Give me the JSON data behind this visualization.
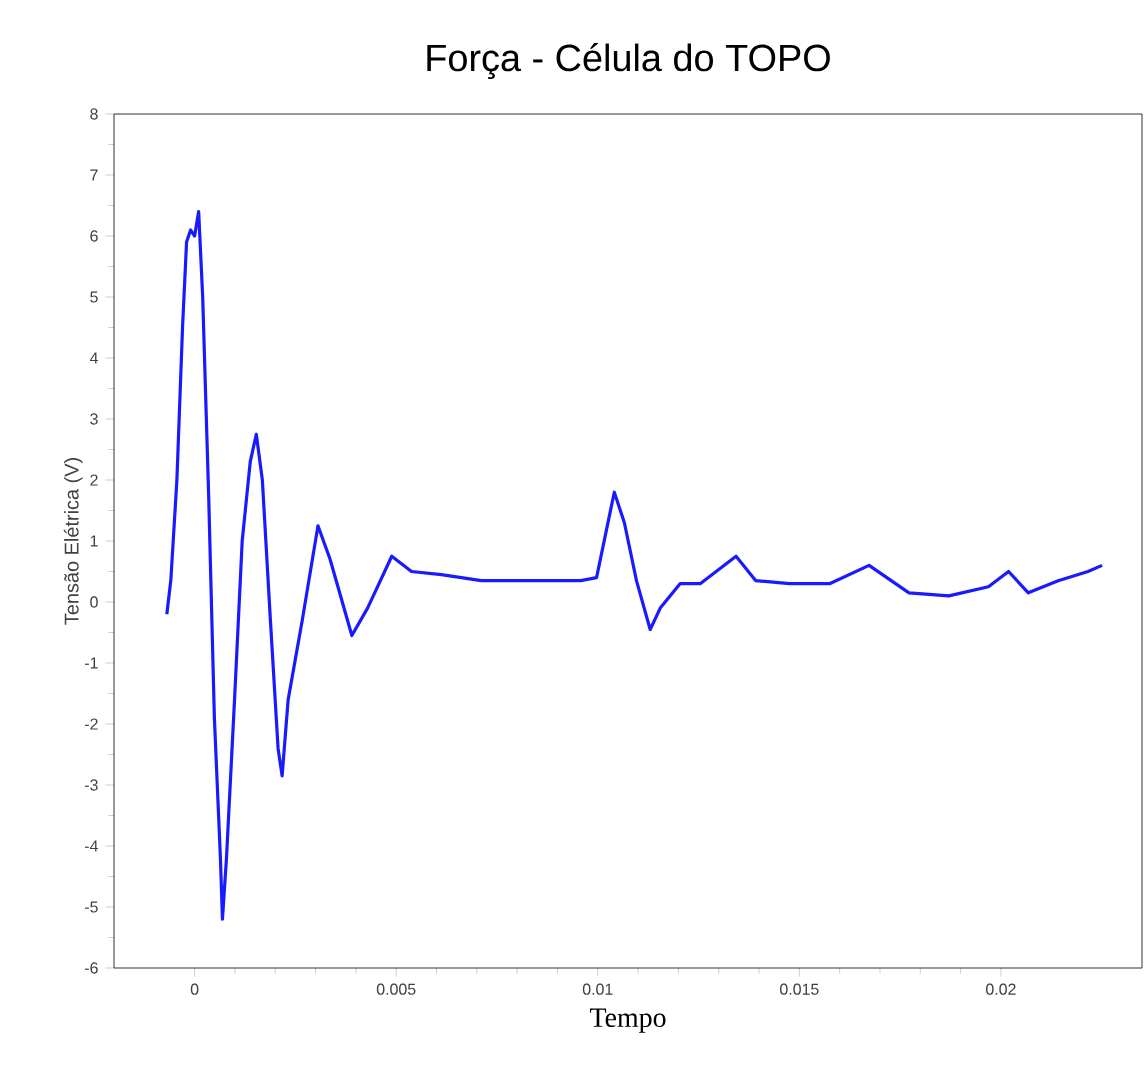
{
  "chart_data": {
    "type": "line",
    "title": "Força - Célula do TOPO",
    "xlabel": "Tempo",
    "ylabel": "Tensão Elétrica (V)",
    "xlim": [
      -0.002,
      0.0235
    ],
    "ylim": [
      -6,
      8
    ],
    "xticks": [
      0,
      0.005,
      0.01,
      0.015,
      0.02
    ],
    "yticks": [
      -6,
      -5,
      -4,
      -3,
      -2,
      -1,
      0,
      1,
      2,
      3,
      4,
      5,
      6,
      7,
      8
    ],
    "marker": "none",
    "line_style": "solid",
    "series": [
      {
        "color": "#1a1aff",
        "x": [
          -0.00069,
          -0.00059,
          -0.00044,
          -0.0003,
          -0.0002,
          -0.0001,
          0,
          0.0001,
          0.0002,
          0.00035,
          0.00049,
          0.00064,
          0.00069,
          0.00079,
          0.00099,
          0.00118,
          0.00138,
          0.00153,
          0.00168,
          0.00188,
          0.00207,
          0.00217,
          0.00232,
          0.00267,
          0.00306,
          0.00336,
          0.0039,
          0.00429,
          0.00489,
          0.00538,
          0.00612,
          0.00711,
          0.00809,
          0.00958,
          0.00997,
          0.01041,
          0.01066,
          0.01096,
          0.0113,
          0.01155,
          0.01204,
          0.01254,
          0.01343,
          0.01392,
          0.01476,
          0.01575,
          0.01673,
          0.01772,
          0.01871,
          0.01969,
          0.02019,
          0.02068,
          0.02142,
          0.02216,
          0.02251
        ],
        "values": [
          -0.2,
          0.36,
          2.0,
          4.5,
          5.9,
          6.1,
          6.0,
          6.4,
          5.0,
          1.7,
          -1.9,
          -4.2,
          -5.2,
          -4.2,
          -1.6,
          1.0,
          2.3,
          2.75,
          2.0,
          -0.3,
          -2.4,
          -2.85,
          -1.6,
          -0.3,
          1.25,
          0.7,
          -0.55,
          -0.1,
          0.75,
          0.5,
          0.45,
          0.35,
          0.35,
          0.35,
          0.4,
          1.8,
          1.3,
          0.35,
          -0.45,
          -0.1,
          0.3,
          0.3,
          0.75,
          0.35,
          0.3,
          0.3,
          0.6,
          0.15,
          0.1,
          0.25,
          0.5,
          0.15,
          0.35,
          0.5,
          0.6
        ]
      }
    ]
  }
}
